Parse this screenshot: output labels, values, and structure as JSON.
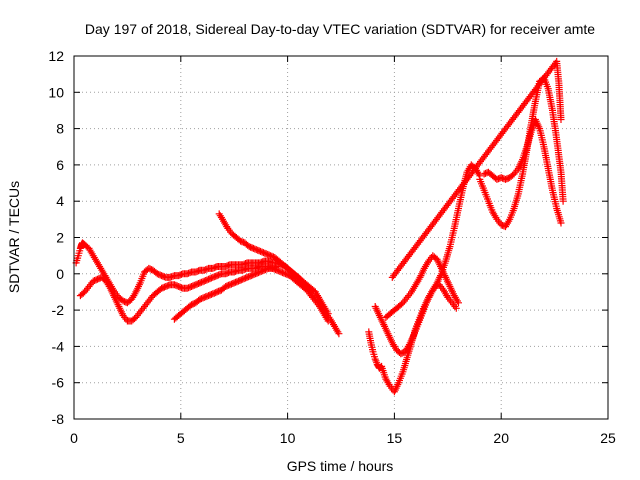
{
  "chart_data": {
    "type": "scatter",
    "title": "Day 197 of 2018, Sidereal Day-to-day VTEC variation (SDTVAR) for receiver amte",
    "xlabel": "GPS time / hours",
    "ylabel": "SDTVAR / TECUs",
    "xlim": [
      0,
      25
    ],
    "ylim": [
      -8,
      12
    ],
    "xticks": [
      "0",
      "5",
      "10",
      "15",
      "20",
      "25"
    ],
    "yticks": [
      "-8",
      "-6",
      "-4",
      "-2",
      "0",
      "2",
      "4",
      "6",
      "8",
      "10",
      "12"
    ],
    "grid": true,
    "marker": "plus",
    "color": "#ff0000",
    "series": [
      {
        "x": [
          0.1,
          0.2,
          0.3,
          0.35,
          0.4,
          0.5,
          0.7,
          0.9,
          1.1,
          1.3,
          1.5,
          1.7,
          1.9,
          2.1,
          2.3,
          2.5,
          2.7,
          2.9,
          3.1,
          3.3,
          3.5,
          3.7,
          3.9,
          4.1,
          4.3,
          4.5,
          4.7,
          4.9,
          5.1,
          5.3,
          5.5,
          5.7,
          5.9,
          6.1,
          6.3,
          6.5,
          6.7,
          6.9,
          7.1,
          7.3,
          7.5,
          7.7,
          7.9,
          8.1,
          8.3,
          8.5,
          8.7,
          8.9,
          9.1,
          9.3,
          9.5,
          9.7,
          9.9,
          10.1,
          10.3,
          10.5,
          10.7,
          10.9,
          11.1,
          11.3,
          11.5,
          11.7,
          11.9
        ],
        "y": [
          0.6,
          1.0,
          1.4,
          1.6,
          1.7,
          1.6,
          1.4,
          1.0,
          0.6,
          0.2,
          -0.2,
          -0.6,
          -1.0,
          -1.3,
          -1.5,
          -1.6,
          -1.4,
          -1.0,
          -0.5,
          0.1,
          0.3,
          0.2,
          0.0,
          -0.1,
          -0.2,
          -0.2,
          -0.1,
          -0.1,
          0.0,
          0.0,
          0.1,
          0.1,
          0.2,
          0.2,
          0.3,
          0.3,
          0.4,
          0.4,
          0.4,
          0.5,
          0.5,
          0.5,
          0.5,
          0.6,
          0.6,
          0.6,
          0.6,
          0.7,
          0.7,
          0.6,
          0.6,
          0.5,
          0.4,
          0.2,
          0.0,
          -0.2,
          -0.4,
          -0.6,
          -0.8,
          -1.0,
          -1.4,
          -1.8,
          -2.2
        ]
      },
      {
        "x": [
          0.3,
          0.5,
          0.7,
          0.9,
          1.1,
          1.3,
          1.5,
          1.7,
          1.9,
          2.1,
          2.3,
          2.5,
          2.7,
          2.9,
          3.1,
          3.3,
          3.5,
          3.7,
          3.9,
          4.1,
          4.3,
          4.5,
          4.7,
          4.9,
          5.1,
          5.3,
          5.5,
          5.7,
          5.9,
          6.1,
          6.3,
          6.5,
          6.7,
          6.9,
          7.1,
          7.3,
          7.5,
          7.7,
          7.9,
          8.1,
          8.3,
          8.5,
          8.7,
          8.9,
          9.1,
          9.3,
          9.5,
          9.7,
          9.9,
          10.1,
          10.3,
          10.5,
          10.7,
          10.9,
          11.1,
          11.3,
          11.5,
          11.7,
          11.9
        ],
        "y": [
          -1.2,
          -1.0,
          -0.7,
          -0.4,
          -0.3,
          -0.2,
          -0.4,
          -0.8,
          -1.3,
          -1.8,
          -2.3,
          -2.6,
          -2.6,
          -2.4,
          -2.1,
          -1.8,
          -1.5,
          -1.2,
          -1.0,
          -0.8,
          -0.7,
          -0.6,
          -0.6,
          -0.7,
          -0.8,
          -0.8,
          -0.7,
          -0.6,
          -0.5,
          -0.4,
          -0.3,
          -0.2,
          -0.1,
          0.0,
          0.0,
          0.1,
          0.1,
          0.2,
          0.2,
          0.3,
          0.3,
          0.3,
          0.4,
          0.4,
          0.4,
          0.3,
          0.2,
          0.1,
          0.0,
          -0.1,
          -0.3,
          -0.5,
          -0.7,
          -0.9,
          -1.2,
          -1.5,
          -1.8,
          -2.2,
          -2.6
        ]
      },
      {
        "x": [
          4.7,
          4.9,
          5.1,
          5.3,
          5.5,
          5.7,
          5.9,
          6.1,
          6.3,
          6.5,
          6.7,
          6.9,
          7.1,
          7.3,
          7.5,
          7.7,
          7.9,
          8.1,
          8.3,
          8.5,
          8.7,
          8.9,
          9.1,
          9.3,
          9.5
        ],
        "y": [
          -2.5,
          -2.3,
          -2.1,
          -1.9,
          -1.7,
          -1.6,
          -1.4,
          -1.3,
          -1.2,
          -1.1,
          -1.0,
          -0.9,
          -0.7,
          -0.6,
          -0.5,
          -0.4,
          -0.3,
          -0.2,
          -0.1,
          0.0,
          0.1,
          0.2,
          0.3,
          0.3,
          0.4
        ]
      },
      {
        "x": [
          6.8,
          7.0,
          7.2,
          7.4,
          7.6,
          7.8,
          8.0,
          8.2,
          8.4,
          8.6,
          8.8,
          9.0,
          9.2,
          9.4,
          9.6,
          9.8,
          10.0,
          10.2,
          10.4,
          10.6,
          10.8,
          11.0,
          11.2,
          11.4,
          11.6,
          11.8,
          12.0,
          12.2,
          12.4
        ],
        "y": [
          3.3,
          2.9,
          2.5,
          2.2,
          2.0,
          1.8,
          1.7,
          1.5,
          1.4,
          1.3,
          1.2,
          1.1,
          1.0,
          0.9,
          0.7,
          0.5,
          0.3,
          0.1,
          -0.1,
          -0.3,
          -0.6,
          -0.9,
          -1.2,
          -1.5,
          -1.8,
          -2.2,
          -2.5,
          -2.9,
          -3.3
        ]
      },
      {
        "x": [
          13.8,
          13.9,
          14.0,
          14.1,
          14.2,
          14.3,
          14.4,
          14.6,
          14.8,
          15.0,
          15.2,
          15.4,
          15.6,
          15.8,
          16.0,
          16.2,
          16.4,
          16.6,
          16.8,
          17.0,
          17.2,
          17.4,
          17.6,
          17.8,
          18.0,
          18.2,
          18.4,
          18.6,
          18.8,
          19.0
        ],
        "y": [
          -3.2,
          -3.8,
          -4.3,
          -4.7,
          -5.0,
          -5.2,
          -5.1,
          -5.8,
          -6.2,
          -6.5,
          -6.0,
          -5.4,
          -4.6,
          -3.8,
          -3.0,
          -2.4,
          -1.8,
          -1.3,
          -0.9,
          -0.5,
          0.0,
          0.7,
          1.5,
          2.5,
          3.6,
          4.7,
          5.6,
          6.0,
          5.8,
          5.4
        ]
      },
      {
        "x": [
          14.6,
          14.8,
          15.0,
          15.2,
          15.4,
          15.6,
          15.8,
          16.0,
          16.2,
          16.4,
          16.6,
          16.8,
          17.0,
          17.2,
          17.4,
          17.6,
          17.8,
          18.0
        ],
        "y": [
          -2.4,
          -2.2,
          -2.0,
          -1.8,
          -1.6,
          -1.3,
          -1.0,
          -0.6,
          -0.2,
          0.3,
          0.7,
          1.0,
          0.8,
          0.3,
          -0.2,
          -0.7,
          -1.2,
          -1.6
        ]
      },
      {
        "x": [
          14.1,
          14.3,
          14.5,
          14.7,
          14.9,
          15.1,
          15.3,
          15.5,
          15.7,
          15.9,
          16.1,
          16.3,
          16.5,
          16.7,
          16.9,
          17.1,
          17.3,
          17.5,
          17.7,
          17.9
        ],
        "y": [
          -1.8,
          -2.3,
          -2.8,
          -3.3,
          -3.8,
          -4.2,
          -4.4,
          -4.3,
          -3.9,
          -3.4,
          -2.8,
          -2.2,
          -1.6,
          -1.1,
          -0.7,
          -0.6,
          -0.9,
          -1.3,
          -1.6,
          -1.9
        ]
      },
      {
        "x": [
          19.0,
          19.2,
          19.4,
          19.6,
          19.8,
          20.0,
          20.2,
          20.4,
          20.6,
          20.8,
          21.0,
          21.2,
          21.4,
          21.6,
          21.8,
          22.0,
          22.2,
          22.4,
          22.6,
          22.8,
          22.9
        ],
        "y": [
          5.2,
          4.6,
          4.0,
          3.4,
          3.0,
          2.7,
          2.6,
          3.0,
          3.6,
          4.4,
          5.5,
          6.8,
          8.2,
          9.5,
          10.6,
          10.8,
          10.2,
          9.0,
          7.4,
          5.6,
          4.0
        ]
      },
      {
        "x": [
          19.2,
          19.4,
          19.6,
          19.8,
          20.0,
          20.2,
          20.4,
          20.6,
          20.8,
          21.0,
          21.2,
          21.4,
          21.6,
          21.8,
          22.0,
          22.2,
          22.4,
          22.6,
          22.8
        ],
        "y": [
          5.5,
          5.6,
          5.4,
          5.2,
          5.3,
          5.2,
          5.3,
          5.5,
          5.8,
          6.3,
          7.0,
          7.8,
          8.5,
          8.0,
          7.0,
          5.8,
          4.6,
          3.6,
          2.8
        ]
      },
      {
        "x": [
          14.9,
          22.6,
          22.7,
          22.8
        ],
        "y": [
          -0.2,
          11.7,
          10.5,
          8.5
        ]
      }
    ]
  }
}
